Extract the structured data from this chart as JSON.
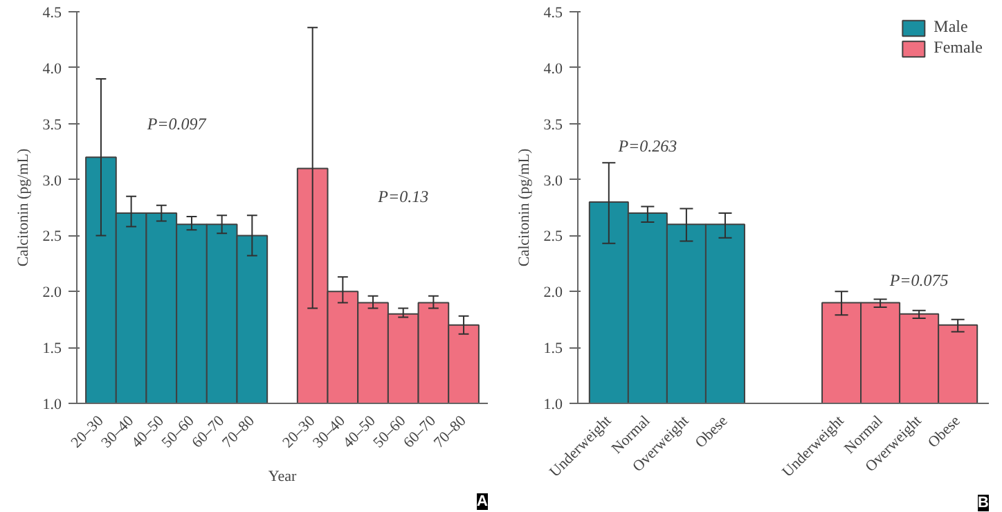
{
  "chart_data": [
    {
      "type": "bar",
      "xlabel": "Year",
      "ylabel": "Calcitonin (pg/mL)",
      "categories": [
        "20–30",
        "30–40",
        "40–50",
        "50–60",
        "60–70",
        "70–80",
        null,
        "20–30",
        "30–40",
        "40–50",
        "50–60",
        "60–70",
        "70–80"
      ],
      "series": [
        {
          "color": "#1a8fa0",
          "values": [
            3.2,
            2.7,
            2.7,
            2.6,
            2.6,
            2.5,
            null,
            null,
            null,
            null,
            null,
            null,
            null
          ],
          "errors": [
            [
              2.5,
              3.9
            ],
            [
              2.58,
              2.85
            ],
            [
              2.63,
              2.77
            ],
            [
              2.55,
              2.67
            ],
            [
              2.52,
              2.68
            ],
            [
              2.32,
              2.68
            ],
            null,
            null,
            null,
            null,
            null,
            null,
            null
          ]
        },
        {
          "color": "#f07080",
          "values": [
            null,
            null,
            null,
            null,
            null,
            null,
            null,
            3.1,
            2.0,
            1.9,
            1.8,
            1.9,
            1.7
          ],
          "errors": [
            null,
            null,
            null,
            null,
            null,
            null,
            null,
            [
              1.85,
              4.36
            ],
            [
              1.9,
              2.13
            ],
            [
              1.85,
              1.96
            ],
            [
              1.77,
              1.85
            ],
            [
              1.85,
              1.96
            ],
            [
              1.62,
              1.78
            ]
          ]
        }
      ],
      "ylim": [
        1.0,
        4.5
      ],
      "yticks": [
        {
          "value": 1.0,
          "label": "1.0"
        },
        1.5,
        {
          "value": 2.0,
          "label": "2.0"
        },
        2.5,
        {
          "value": 3.0,
          "label": "3.0"
        },
        3.5,
        {
          "value": 4.0,
          "label": "4.0"
        },
        4.5
      ],
      "grid": false,
      "legend": false,
      "annotations": [
        "P=0.097",
        "P=0.13",
        "A"
      ]
    },
    {
      "type": "bar",
      "ylabel": "Calcitonin (pg/mL)",
      "categories": [
        "Underweight",
        "Normal",
        "Overweight",
        "Obese",
        null,
        null,
        "Underweight",
        "Normal",
        "Overweight",
        "Obese"
      ],
      "series": [
        {
          "name": "Male",
          "color": "#1a8fa0",
          "values": [
            2.8,
            2.7,
            2.6,
            2.6,
            null,
            null,
            null,
            null,
            null,
            null
          ],
          "errors": [
            [
              2.43,
              3.15
            ],
            [
              2.62,
              2.76
            ],
            [
              2.45,
              2.74
            ],
            [
              2.48,
              2.7
            ],
            null,
            null,
            null,
            null,
            null,
            null
          ]
        },
        {
          "name": "Female",
          "color": "#f07080",
          "values": [
            null,
            null,
            null,
            null,
            null,
            null,
            1.9,
            1.9,
            1.8,
            1.7
          ],
          "errors": [
            null,
            null,
            null,
            null,
            null,
            null,
            [
              1.79,
              2.0
            ],
            [
              1.86,
              1.93
            ],
            [
              1.76,
              1.83
            ],
            [
              1.64,
              1.75
            ]
          ]
        }
      ],
      "ylim": [
        1.0,
        4.5
      ],
      "yticks": [
        {
          "value": 1.0,
          "label": "1.0"
        },
        1.5,
        {
          "value": 2.0,
          "label": "2.0"
        },
        2.5,
        {
          "value": 3.0,
          "label": "3.0"
        },
        3.5,
        {
          "value": 4.0,
          "label": "4.0"
        },
        4.5
      ],
      "grid": false,
      "legend": "top right",
      "annotations": [
        "P=0.263",
        "P=0.075",
        "B"
      ]
    }
  ]
}
